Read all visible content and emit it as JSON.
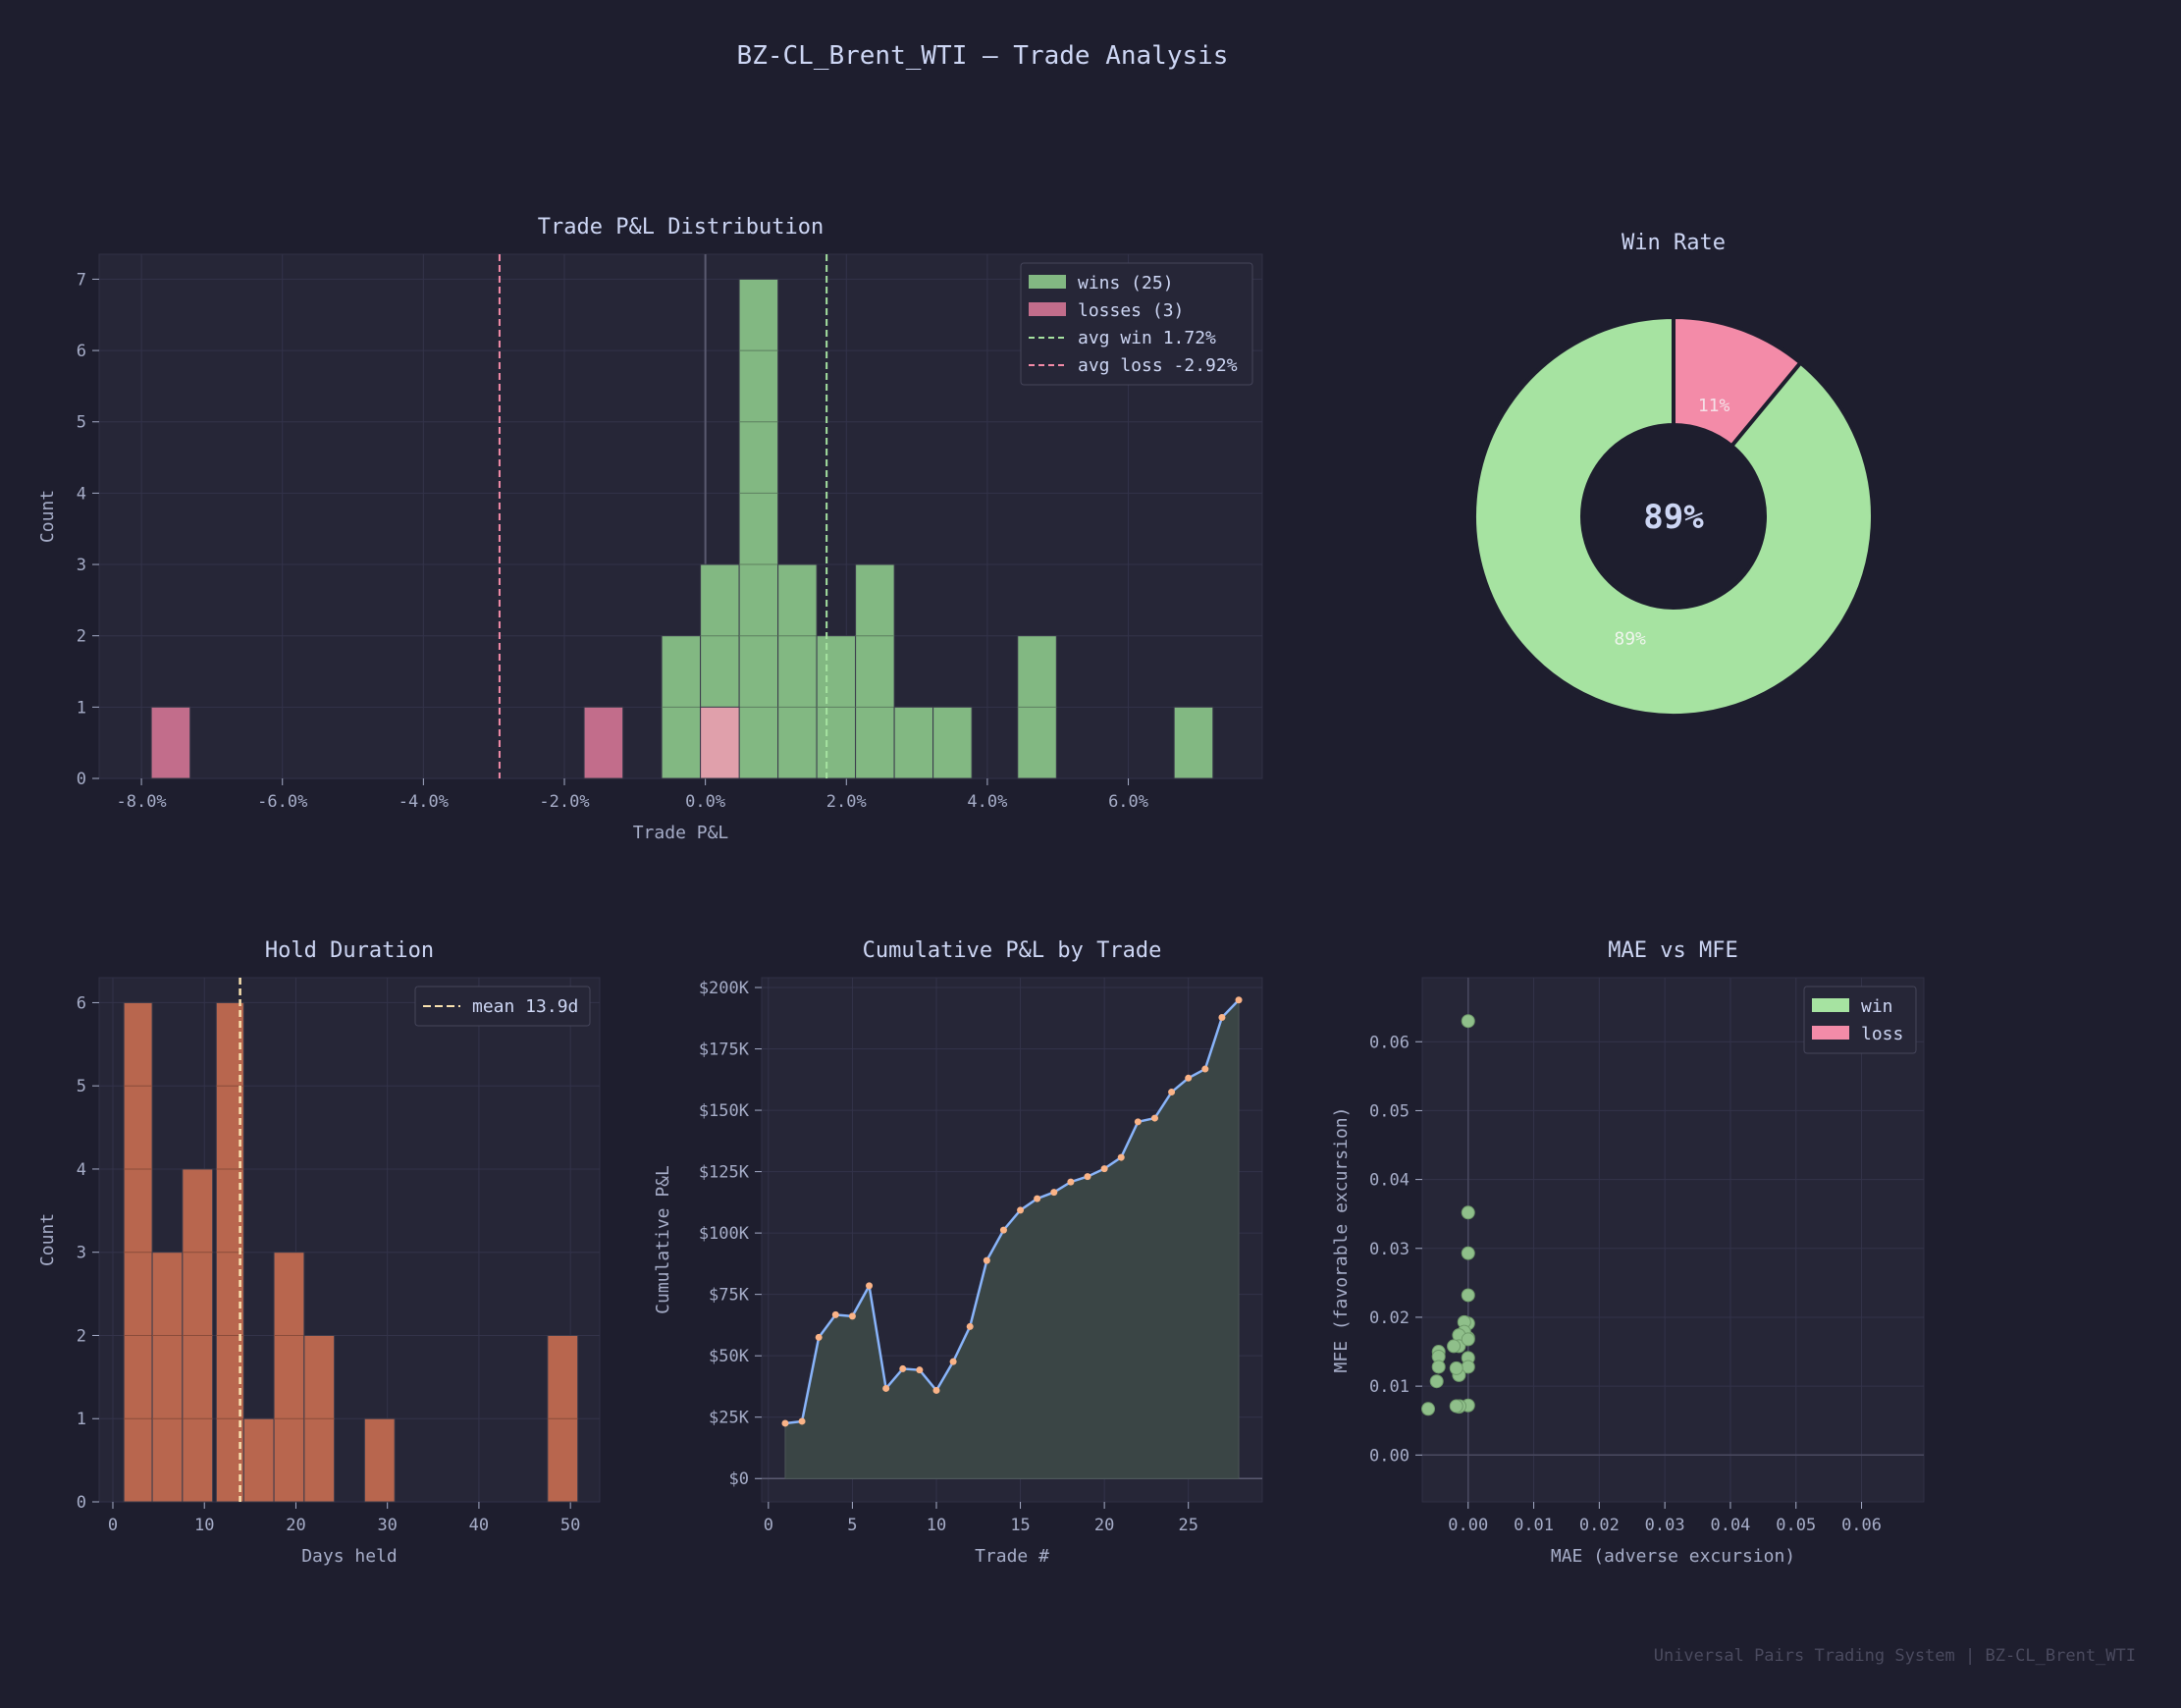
{
  "title": "BZ-CL_Brent_WTI  —  Trade Analysis",
  "footer": "Universal Pairs Trading System  |  BZ-CL_Brent_WTI",
  "colors": {
    "background": "#1e1e2e",
    "panel": "#262637",
    "text": "#cdd6f4",
    "tick_text": "#a6adc8",
    "win": "#a6e3a1",
    "win_bar": "#82b882",
    "loss": "#f38ba8",
    "loss_bar": "#c26d8b",
    "hold_bar": "#b8664e",
    "mean_line": "#f9e2af",
    "equity_line": "#89b4fa",
    "equity_point": "#fab387",
    "equity_fill": "#3a4545"
  },
  "chart_data": [
    {
      "id": "pnl",
      "type": "bar",
      "title": "Trade P&L Distribution",
      "xlabel": "Trade P&L",
      "ylabel": "Count",
      "xlim": [
        -8.6,
        7.9
      ],
      "ylim": [
        0,
        7.35
      ],
      "xticks": [
        -8,
        -6,
        -4,
        -2,
        0,
        2,
        4,
        6
      ],
      "xtick_labels": [
        "-8.0%",
        "-6.0%",
        "-4.0%",
        "-2.0%",
        "0.0%",
        "2.0%",
        "4.0%",
        "6.0%"
      ],
      "yticks": [
        0,
        1,
        2,
        3,
        4,
        5,
        6,
        7
      ],
      "grid": true,
      "legend_position": "top-right",
      "series": [
        {
          "name": "wins (25)",
          "bins": [
            [
              -0.62,
              -0.07,
              2
            ],
            [
              -0.07,
              0.48,
              3
            ],
            [
              0.48,
              1.03,
              7
            ],
            [
              1.03,
              1.58,
              3
            ],
            [
              1.58,
              2.13,
              2
            ],
            [
              2.13,
              2.68,
              3
            ],
            [
              2.68,
              3.23,
              1
            ],
            [
              3.23,
              3.78,
              1
            ],
            [
              4.43,
              4.98,
              2
            ],
            [
              6.65,
              7.2,
              1
            ]
          ]
        },
        {
          "name": "losses (3)",
          "bins": [
            [
              -7.86,
              -7.31,
              1
            ],
            [
              -1.72,
              -1.17,
              1
            ],
            [
              -0.07,
              0.48,
              1
            ]
          ]
        }
      ],
      "reference_lines": [
        {
          "name": "avg win 1.72%",
          "x": 1.72
        },
        {
          "name": "avg loss -2.92%",
          "x": -2.92
        }
      ]
    },
    {
      "id": "winrate",
      "type": "pie",
      "title": "Win Rate",
      "center_label": "89%",
      "slices": [
        {
          "name": "win",
          "value": 89,
          "label": "89%"
        },
        {
          "name": "loss",
          "value": 11,
          "label": "11%"
        }
      ]
    },
    {
      "id": "hold",
      "type": "bar",
      "title": "Hold Duration",
      "xlabel": "Days held",
      "ylabel": "Count",
      "xlim": [
        -1.5,
        53.2
      ],
      "ylim": [
        0,
        6.3
      ],
      "xticks": [
        0,
        10,
        20,
        30,
        40,
        50
      ],
      "xtick_labels": [
        "0",
        "10",
        "20",
        "30",
        "40",
        "50"
      ],
      "yticks": [
        0,
        1,
        2,
        3,
        4,
        5,
        6
      ],
      "grid": true,
      "legend_position": "top-right",
      "bins": [
        [
          1.2,
          4.3,
          6
        ],
        [
          4.3,
          7.6,
          3
        ],
        [
          7.6,
          10.9,
          4
        ],
        [
          11.3,
          14.3,
          6
        ],
        [
          14.3,
          17.6,
          1
        ],
        [
          17.6,
          20.9,
          3
        ],
        [
          20.9,
          24.2,
          2
        ],
        [
          27.5,
          30.8,
          1
        ],
        [
          47.5,
          50.8,
          2
        ]
      ],
      "reference_lines": [
        {
          "name": "mean 13.9d",
          "x": 13.9
        }
      ]
    },
    {
      "id": "equity",
      "type": "area",
      "title": "Cumulative P&L by Trade",
      "xlabel": "Trade #",
      "ylabel": "Cumulative P&L",
      "xlim": [
        -0.4,
        29.4
      ],
      "ylim": [
        -9500,
        204000
      ],
      "xticks": [
        0,
        5,
        10,
        15,
        20,
        25
      ],
      "xtick_labels": [
        "0",
        "5",
        "10",
        "15",
        "20",
        "25"
      ],
      "yticks": [
        0,
        25000,
        50000,
        75000,
        100000,
        125000,
        150000,
        175000,
        200000
      ],
      "ytick_labels": [
        "$0",
        "$25K",
        "$50K",
        "$75K",
        "$100K",
        "$125K",
        "$150K",
        "$175K",
        "$200K"
      ],
      "grid": true,
      "x": [
        1,
        2,
        3,
        4,
        5,
        6,
        7,
        8,
        9,
        10,
        11,
        12,
        13,
        14,
        15,
        16,
        17,
        18,
        19,
        20,
        21,
        22,
        23,
        24,
        25,
        26,
        27,
        28
      ],
      "y": [
        22500,
        23300,
        57500,
        66700,
        66100,
        78500,
        36700,
        44700,
        44200,
        35900,
        47600,
        61900,
        88800,
        101200,
        109300,
        114000,
        116600,
        120800,
        123000,
        126200,
        130800,
        145300,
        146800,
        157400,
        163100,
        166800,
        187800,
        194900
      ]
    },
    {
      "id": "maemfe",
      "type": "scatter",
      "title": "MAE vs MFE",
      "xlabel": "MAE (adverse excursion)",
      "ylabel": "MFE (favorable excursion)",
      "xlim": [
        -0.007,
        0.0695
      ],
      "ylim": [
        -0.0068,
        0.0693
      ],
      "xticks": [
        0,
        0.01,
        0.02,
        0.03,
        0.04,
        0.05,
        0.06
      ],
      "xtick_labels": [
        "0.00",
        "0.01",
        "0.02",
        "0.03",
        "0.04",
        "0.05",
        "0.06"
      ],
      "yticks": [
        0,
        0.01,
        0.02,
        0.03,
        0.04,
        0.05,
        0.06
      ],
      "ytick_labels": [
        "0.00",
        "0.01",
        "0.02",
        "0.03",
        "0.04",
        "0.05",
        "0.06"
      ],
      "grid": true,
      "legend_position": "top-right",
      "legend": [
        "win",
        "loss"
      ],
      "points": [
        [
          0,
          0.063
        ],
        [
          0,
          0.0352
        ],
        [
          0,
          0.0293
        ],
        [
          0,
          0.0232
        ],
        [
          0,
          0.0191
        ],
        [
          0,
          0.017
        ],
        [
          0,
          0.0141
        ],
        [
          0,
          0.0128
        ],
        [
          0,
          0.0072
        ],
        [
          -0.0006,
          0.0193
        ],
        [
          -0.0006,
          0.0179
        ],
        [
          -0.0014,
          0.0174
        ],
        [
          -0.0014,
          0.0158
        ],
        [
          -0.0014,
          0.0116
        ],
        [
          -0.0014,
          0.007
        ],
        [
          -0.0022,
          0.0158
        ],
        [
          -0.0045,
          0.015
        ],
        [
          -0.0045,
          0.0143
        ],
        [
          -0.0045,
          0.0128
        ],
        [
          -0.0048,
          0.0107
        ],
        [
          -0.0013,
          0.0071
        ],
        [
          -0.0018,
          0.0071
        ],
        [
          -0.0061,
          0.0067
        ],
        [
          -0.0018,
          0.0126
        ],
        [
          0,
          0.0168
        ]
      ]
    }
  ]
}
